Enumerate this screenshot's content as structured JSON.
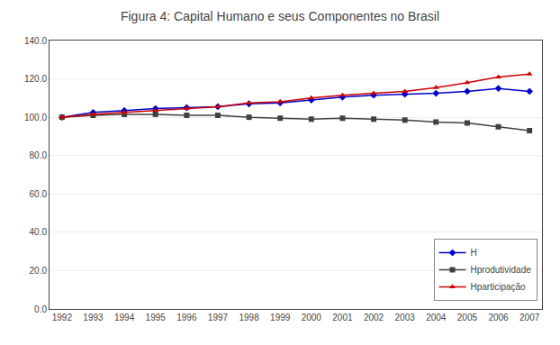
{
  "chart_data": {
    "type": "line",
    "title": "Figura 4: Capital Humano e seus Componentes no Brasil",
    "x": [
      1992,
      1993,
      1994,
      1995,
      1996,
      1997,
      1998,
      1999,
      2000,
      2001,
      2002,
      2003,
      2004,
      2005,
      2006,
      2007
    ],
    "series": [
      {
        "name": "H",
        "color": "#0000CC",
        "marker": "diamond",
        "values": [
          100.0,
          102.5,
          103.5,
          104.5,
          105.0,
          105.5,
          107.0,
          107.5,
          109.0,
          110.5,
          111.5,
          112.0,
          112.5,
          113.5,
          115.0,
          113.5
        ]
      },
      {
        "name": "Hprodutividade",
        "color": "#404040",
        "marker": "square",
        "values": [
          100.0,
          101.0,
          101.5,
          101.5,
          101.0,
          101.0,
          100.0,
          99.5,
          99.0,
          99.5,
          99.0,
          98.5,
          97.5,
          97.0,
          95.0,
          93.0
        ]
      },
      {
        "name": "Hparticipação",
        "color": "#CC0000",
        "marker": "triangle-up",
        "values": [
          100.0,
          101.5,
          102.5,
          103.5,
          104.5,
          105.5,
          107.5,
          108.0,
          110.0,
          111.5,
          112.5,
          113.5,
          115.5,
          118.0,
          121.0,
          122.5
        ]
      }
    ],
    "xlim": [
      1991.6,
      2007.4
    ],
    "xticks": [
      1992,
      1993,
      1994,
      1995,
      1996,
      1997,
      1998,
      1999,
      2000,
      2001,
      2002,
      2003,
      2004,
      2005,
      2006,
      2007
    ],
    "ylim": [
      0.0,
      140.0
    ],
    "yticks": [
      {
        "value": 0,
        "label": "0.0"
      },
      {
        "value": 20,
        "label": "20.0"
      },
      {
        "value": 40,
        "label": "40.0"
      },
      {
        "value": 60,
        "label": "60.0"
      },
      {
        "value": 80,
        "label": "80.0"
      },
      {
        "value": 100,
        "label": "100.0"
      },
      {
        "value": 120,
        "label": "120.0"
      },
      {
        "value": 140,
        "label": "140.0"
      }
    ],
    "grid": true,
    "legend": "lower right"
  }
}
